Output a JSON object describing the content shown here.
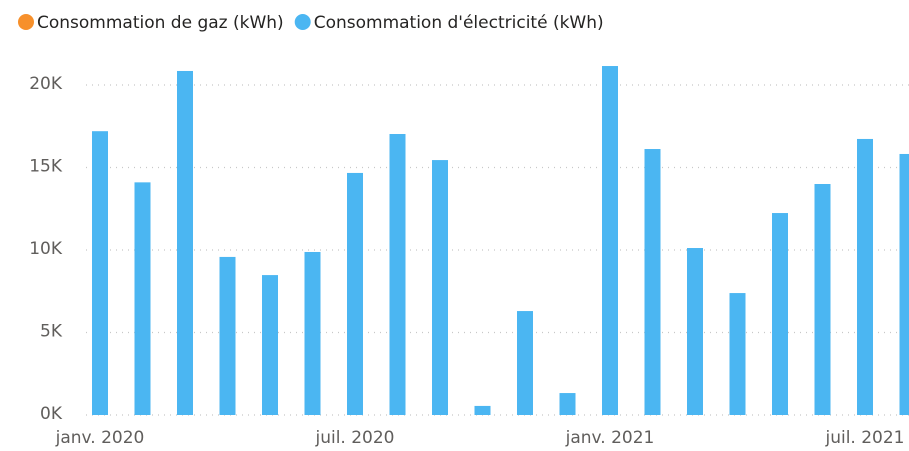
{
  "chart_data": {
    "type": "bar",
    "categories": [
      "janv. 2020",
      null,
      null,
      null,
      null,
      null,
      "juil. 2020",
      null,
      null,
      null,
      null,
      null,
      "janv. 2021",
      null,
      null,
      null,
      null,
      null,
      "juil. 2021",
      null
    ],
    "series": [
      {
        "name": "Consommation de gaz (kWh)",
        "color": "#f7902b",
        "values": [
          null,
          null,
          null,
          null,
          null,
          null,
          null,
          null,
          null,
          null,
          null,
          null,
          null,
          null,
          null,
          null,
          null,
          null,
          null,
          null
        ]
      },
      {
        "name": "Consommation d'électricité (kWh)",
        "color": "#4bb6f2",
        "values": [
          17200,
          14100,
          20850,
          9580,
          8480,
          9880,
          14670,
          17030,
          15450,
          550,
          6300,
          1330,
          21150,
          16120,
          10120,
          7390,
          12240,
          14000,
          16730,
          15820
        ]
      }
    ],
    "ylim": [
      0,
      21500
    ],
    "yticks": [
      {
        "value": 0,
        "label": "0K"
      },
      {
        "value": 5000,
        "label": "5K"
      },
      {
        "value": 10000,
        "label": "10K"
      },
      {
        "value": 15000,
        "label": "15K"
      },
      {
        "value": 20000,
        "label": "20K"
      }
    ],
    "grid": true,
    "legend": "top-left"
  }
}
